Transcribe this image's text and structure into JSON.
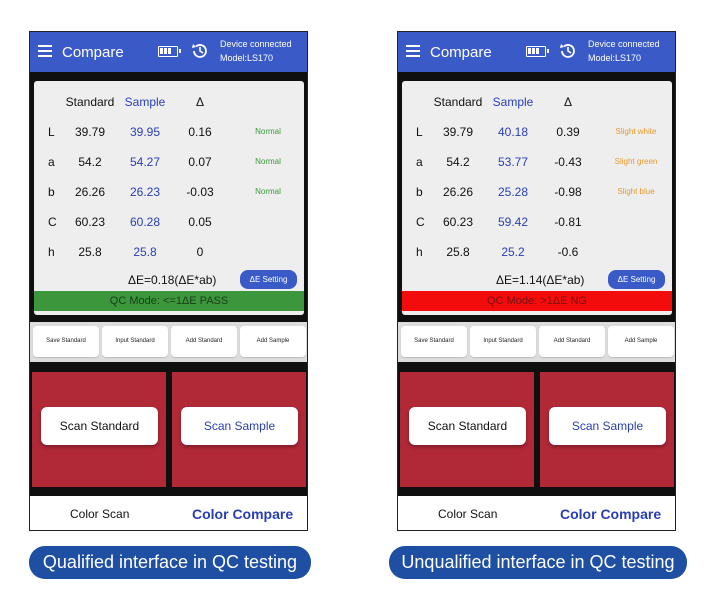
{
  "captions": {
    "left": "Qualified interface in QC testing",
    "right": "Unqualified interface in QC testing"
  },
  "colors": {
    "appbar": "#3a5bc7",
    "sample_text": "#2a3eb3",
    "pass_bar": "#3c963c",
    "ng_bar": "#f20c0c",
    "scan_panel": "#b12837",
    "caption_bg": "#1e4fa3",
    "normal_text": "#3a9a3a",
    "slight_text": "#e89a2a"
  },
  "phones": [
    {
      "appbar": {
        "title": "Compare",
        "status_line1": "Device connected",
        "status_line2": "Model:LS170",
        "icons": [
          "menu-icon",
          "battery-icon",
          "history-icon"
        ]
      },
      "table": {
        "headers": {
          "standard": "Standard",
          "sample": "Sample",
          "delta": "Δ"
        },
        "rows": [
          {
            "label": "L",
            "standard": "39.79",
            "sample": "39.95",
            "delta": "0.16",
            "judgement": "Normal"
          },
          {
            "label": "a",
            "standard": "54.2",
            "sample": "54.27",
            "delta": "0.07",
            "judgement": "Normal"
          },
          {
            "label": "b",
            "standard": "26.26",
            "sample": "26.23",
            "delta": "-0.03",
            "judgement": "Normal"
          },
          {
            "label": "C",
            "standard": "60.23",
            "sample": "60.28",
            "delta": "0.05",
            "judgement": ""
          },
          {
            "label": "h",
            "standard": "25.8",
            "sample": "25.8",
            "delta": "0",
            "judgement": ""
          }
        ]
      },
      "delta_e": "ΔE=0.18(ΔE*ab)",
      "de_setting": "ΔE Setting",
      "qc_text": "QC Mode: <=1ΔE  PASS",
      "actions": [
        "Save Standard",
        "Input Standard",
        "Add Standard",
        "Add Sample"
      ],
      "scan_standard": "Scan Standard",
      "scan_sample": "Scan Sample",
      "nav": {
        "scan": "Color Scan",
        "compare": "Color Compare"
      }
    },
    {
      "appbar": {
        "title": "Compare",
        "status_line1": "Device connected",
        "status_line2": "Model:LS170",
        "icons": [
          "menu-icon",
          "battery-icon",
          "history-icon"
        ]
      },
      "table": {
        "headers": {
          "standard": "Standard",
          "sample": "Sample",
          "delta": "Δ"
        },
        "rows": [
          {
            "label": "L",
            "standard": "39.79",
            "sample": "40.18",
            "delta": "0.39",
            "judgement": "Slight white"
          },
          {
            "label": "a",
            "standard": "54.2",
            "sample": "53.77",
            "delta": "-0.43",
            "judgement": "Slight green"
          },
          {
            "label": "b",
            "standard": "26.26",
            "sample": "25.28",
            "delta": "-0.98",
            "judgement": "Slight blue"
          },
          {
            "label": "C",
            "standard": "60.23",
            "sample": "59.42",
            "delta": "-0.81",
            "judgement": ""
          },
          {
            "label": "h",
            "standard": "25.8",
            "sample": "25.2",
            "delta": "-0.6",
            "judgement": ""
          }
        ]
      },
      "delta_e": "ΔE=1.14(ΔE*ab)",
      "de_setting": "ΔE Setting",
      "qc_text": "QC Mode: >1ΔE  NG",
      "actions": [
        "Save Standard",
        "Input Standard",
        "Add Standard",
        "Add Sample"
      ],
      "scan_standard": "Scan Standard",
      "scan_sample": "Scan Sample",
      "nav": {
        "scan": "Color Scan",
        "compare": "Color Compare"
      }
    }
  ]
}
